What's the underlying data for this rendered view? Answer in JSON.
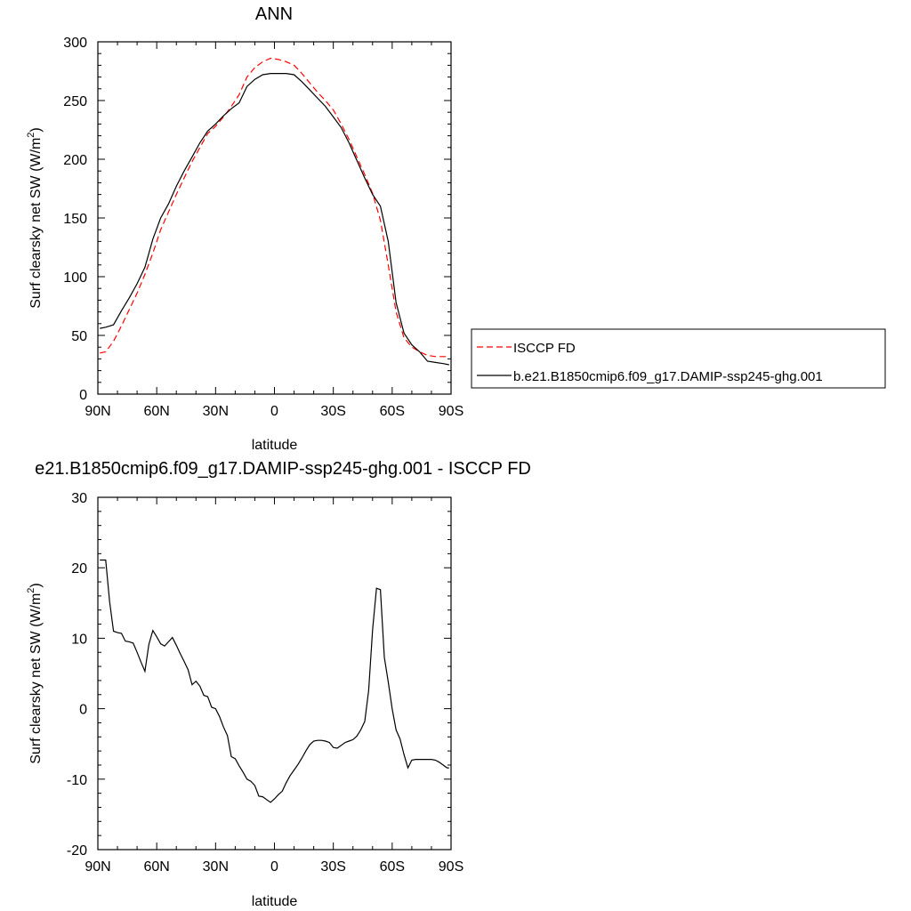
{
  "chart_data": [
    {
      "type": "line",
      "title": "ANN",
      "xlabel": "latitude",
      "ylabel": "Surf clearsky net SW (W/m",
      "ylabel_sup": "2",
      "ylabel_close": ")",
      "x_ticks": [
        "90N",
        "60N",
        "30N",
        "0",
        "30S",
        "60S",
        "90S"
      ],
      "x_tick_values": [
        -90,
        -60,
        -30,
        0,
        30,
        60,
        90
      ],
      "xlim": [
        -90,
        90
      ],
      "ylim": [
        0,
        300
      ],
      "y_ticks": [
        0,
        50,
        100,
        150,
        200,
        250,
        300
      ],
      "grid": false,
      "legend_position": "right",
      "series": [
        {
          "name": "ISCCP FD",
          "color": "#ff0000",
          "dash": "dashed",
          "x": [
            -89,
            -86,
            -82,
            -78,
            -74,
            -70,
            -66,
            -62,
            -58,
            -54,
            -50,
            -46,
            -42,
            -38,
            -34,
            -30,
            -26,
            -22,
            -18,
            -14,
            -10,
            -6,
            -2,
            2,
            6,
            10,
            14,
            18,
            22,
            26,
            30,
            34,
            38,
            42,
            46,
            50,
            54,
            58,
            62,
            66,
            70,
            74,
            78,
            82,
            86,
            89
          ],
          "y": [
            35,
            36,
            45,
            58,
            72,
            86,
            102,
            120,
            140,
            155,
            170,
            184,
            198,
            210,
            222,
            228,
            236,
            245,
            255,
            270,
            278,
            283,
            286,
            285,
            283,
            280,
            273,
            265,
            257,
            250,
            242,
            230,
            217,
            202,
            187,
            171,
            148,
            110,
            70,
            48,
            40,
            36,
            33,
            32,
            32,
            32
          ]
        },
        {
          "name": "b.e21.B1850cmip6.f09_g17.DAMIP-ssp245-ghg.001",
          "color": "#000000",
          "dash": "solid",
          "x": [
            -89,
            -86,
            -82,
            -78,
            -74,
            -70,
            -66,
            -62,
            -58,
            -54,
            -50,
            -46,
            -42,
            -38,
            -34,
            -30,
            -26,
            -22,
            -18,
            -14,
            -10,
            -6,
            -2,
            2,
            6,
            10,
            14,
            18,
            22,
            26,
            30,
            34,
            38,
            42,
            46,
            50,
            54,
            58,
            62,
            66,
            70,
            74,
            78,
            82,
            86,
            89
          ],
          "y": [
            56,
            57,
            59,
            71,
            82,
            94,
            108,
            132,
            150,
            162,
            177,
            190,
            202,
            214,
            224,
            230,
            237,
            243,
            248,
            262,
            268,
            272,
            273,
            273,
            273,
            272,
            266,
            259,
            252,
            245,
            236,
            227,
            214,
            199,
            184,
            170,
            160,
            130,
            78,
            52,
            42,
            36,
            28,
            27,
            26,
            25
          ]
        }
      ]
    },
    {
      "type": "line",
      "title": "e21.B1850cmip6.f09_g17.DAMIP-ssp245-ghg.001 - ISCCP FD",
      "xlabel": "latitude",
      "ylabel": "Surf clearsky net SW (W/m",
      "ylabel_sup": "2",
      "ylabel_close": ")",
      "x_ticks": [
        "90N",
        "60N",
        "30N",
        "0",
        "30S",
        "60S",
        "90S"
      ],
      "x_tick_values": [
        -90,
        -60,
        -30,
        0,
        30,
        60,
        90
      ],
      "xlim": [
        -90,
        90
      ],
      "ylim": [
        -20,
        30
      ],
      "y_ticks": [
        -20,
        -10,
        0,
        10,
        20,
        30
      ],
      "grid": false,
      "series": [
        {
          "name": "",
          "color": "#000000",
          "dash": "solid",
          "x": [
            -89,
            -86,
            -84,
            -82,
            -80,
            -78,
            -76,
            -74,
            -72,
            -70,
            -68,
            -66,
            -64,
            -62,
            -60,
            -58,
            -56,
            -54,
            -52,
            -50,
            -48,
            -46,
            -44,
            -42,
            -40,
            -38,
            -36,
            -34,
            -32,
            -30,
            -28,
            -26,
            -24,
            -22,
            -20,
            -18,
            -16,
            -14,
            -12,
            -10,
            -8,
            -6,
            -4,
            -2,
            0,
            2,
            4,
            6,
            8,
            10,
            12,
            14,
            16,
            18,
            20,
            22,
            24,
            26,
            28,
            30,
            32,
            34,
            36,
            38,
            40,
            42,
            44,
            46,
            48,
            50,
            52,
            54,
            56,
            58,
            60,
            62,
            64,
            66,
            68,
            70,
            72,
            74,
            76,
            78,
            80,
            82,
            84,
            86,
            88,
            89
          ],
          "y": [
            21.1,
            21.1,
            15.2,
            11.0,
            10.8,
            10.7,
            9.6,
            9.5,
            9.3,
            8.0,
            6.6,
            5.3,
            9.1,
            11.1,
            10.2,
            9.2,
            8.9,
            9.5,
            10.1,
            9.0,
            7.8,
            6.7,
            5.5,
            3.4,
            3.9,
            3.2,
            1.9,
            1.7,
            0.2,
            0.0,
            -1.1,
            -2.6,
            -3.8,
            -6.8,
            -7.1,
            -8.1,
            -9.0,
            -10.0,
            -10.3,
            -10.9,
            -12.4,
            -12.5,
            -12.9,
            -13.3,
            -12.8,
            -12.2,
            -11.7,
            -10.5,
            -9.5,
            -8.7,
            -7.9,
            -7.0,
            -6.0,
            -5.1,
            -4.6,
            -4.5,
            -4.5,
            -4.6,
            -4.8,
            -5.5,
            -5.6,
            -5.2,
            -4.8,
            -4.6,
            -4.4,
            -3.9,
            -3.0,
            -1.8,
            2.6,
            11.2,
            17.1,
            16.9,
            7.3,
            3.8,
            0.0,
            -3.0,
            -4.3,
            -6.5,
            -8.4,
            -7.3,
            -7.2,
            -7.2,
            -7.2,
            -7.2,
            -7.2,
            -7.3,
            -7.6,
            -8.0,
            -8.4,
            -8.4
          ]
        }
      ]
    }
  ]
}
